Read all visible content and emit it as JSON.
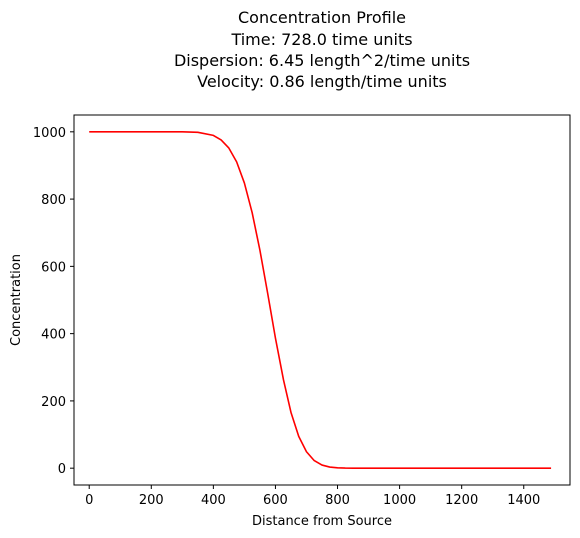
{
  "chart_data": {
    "type": "line",
    "title_lines": [
      "Concentration Profile",
      "Time: 728.0 time units",
      "Dispersion: 6.45 length^2/time units",
      "Velocity: 0.86 length/time units"
    ],
    "xlabel": "Distance from Source",
    "ylabel": "Concentration",
    "xlim": [
      -49,
      1549
    ],
    "ylim": [
      -50,
      1050
    ],
    "xticks": [
      0,
      200,
      400,
      600,
      800,
      1000,
      1200,
      1400
    ],
    "yticks": [
      0,
      200,
      400,
      600,
      800,
      1000
    ],
    "grid": false,
    "series": [
      {
        "color": "#ff0000",
        "x": [
          0,
          100,
          200,
          300,
          350,
          400,
          425,
          450,
          475,
          500,
          525,
          550,
          575,
          600,
          626,
          650,
          675,
          700,
          725,
          750,
          775,
          800,
          825,
          850,
          900,
          950,
          1000,
          1100,
          1200,
          1300,
          1400,
          1488
        ],
        "y": [
          1000,
          1000,
          1000,
          999.9,
          998.5,
          989.4,
          975.8,
          951.6,
          910.6,
          847.7,
          759.5,
          647.9,
          519.7,
          386.8,
          262.3,
          166.0,
          94.6,
          48.9,
          22.5,
          9.3,
          3.4,
          1.1,
          0.3,
          0.1,
          0,
          0,
          0,
          0,
          0,
          0,
          0,
          0
        ]
      }
    ]
  }
}
